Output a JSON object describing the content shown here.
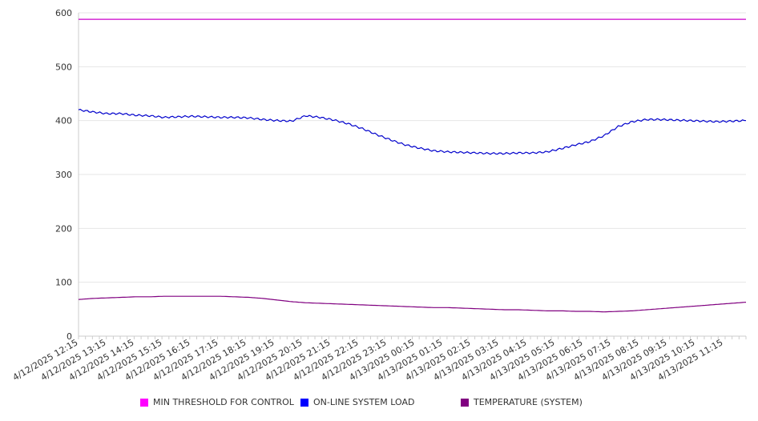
{
  "chart_data": {
    "type": "line",
    "ylim": [
      0,
      600
    ],
    "yticks": [
      0,
      100,
      200,
      300,
      400,
      500,
      600
    ],
    "grid": true,
    "legend_position": "bottom",
    "x_tick_labels": [
      "4/12/2025 12:15",
      "4/12/2025 13:15",
      "4/12/2025 14:15",
      "4/12/2025 15:15",
      "4/12/2025 16:15",
      "4/12/2025 17:15",
      "4/12/2025 18:15",
      "4/12/2025 19:15",
      "4/12/2025 20:15",
      "4/12/2025 21:15",
      "4/12/2025 22:15",
      "4/12/2025 23:15",
      "4/13/2025 00:15",
      "4/13/2025 01:15",
      "4/13/2025 02:15",
      "4/13/2025 03:15",
      "4/13/2025 04:15",
      "4/13/2025 05:15",
      "4/13/2025 06:15",
      "4/13/2025 07:15",
      "4/13/2025 08:15",
      "4/13/2025 09:15",
      "4/13/2025 10:15",
      "4/13/2025 11:15"
    ],
    "x": [
      "4/12/2025 12:15",
      "4/12/2025 12:45",
      "4/12/2025 13:15",
      "4/12/2025 13:45",
      "4/12/2025 14:15",
      "4/12/2025 14:45",
      "4/12/2025 15:15",
      "4/12/2025 15:45",
      "4/12/2025 16:15",
      "4/12/2025 16:45",
      "4/12/2025 17:15",
      "4/12/2025 17:45",
      "4/12/2025 18:15",
      "4/12/2025 18:45",
      "4/12/2025 19:15",
      "4/12/2025 19:45",
      "4/12/2025 20:15",
      "4/12/2025 20:45",
      "4/12/2025 21:15",
      "4/12/2025 21:45",
      "4/12/2025 22:15",
      "4/12/2025 22:45",
      "4/12/2025 23:15",
      "4/12/2025 23:45",
      "4/13/2025 00:15",
      "4/13/2025 00:45",
      "4/13/2025 01:15",
      "4/13/2025 01:45",
      "4/13/2025 02:15",
      "4/13/2025 02:45",
      "4/13/2025 03:15",
      "4/13/2025 03:45",
      "4/13/2025 04:15",
      "4/13/2025 04:45",
      "4/13/2025 05:15",
      "4/13/2025 05:45",
      "4/13/2025 06:15",
      "4/13/2025 06:45",
      "4/13/2025 07:15",
      "4/13/2025 07:45",
      "4/13/2025 08:15",
      "4/13/2025 08:45",
      "4/13/2025 09:15",
      "4/13/2025 09:45",
      "4/13/2025 10:15",
      "4/13/2025 10:45",
      "4/13/2025 11:15",
      "4/13/2025 11:45"
    ],
    "series": [
      {
        "name": "MIN THRESHOLD FOR CONTROL",
        "color": "#cc00cc",
        "values": [
          588,
          588,
          588,
          588,
          588,
          588,
          588,
          588,
          588,
          588,
          588,
          588,
          588,
          588,
          588,
          588,
          588,
          588,
          588,
          588,
          588,
          588,
          588,
          588,
          588,
          588,
          588,
          588,
          588,
          588,
          588,
          588,
          588,
          588,
          588,
          588,
          588,
          588,
          588,
          588,
          588,
          588,
          588,
          588,
          588,
          588,
          588,
          588
        ]
      },
      {
        "name": "ON-LINE SYSTEM LOAD",
        "color": "#0000cc",
        "values": [
          420,
          416,
          413,
          413,
          410,
          409,
          406,
          407,
          408,
          407,
          406,
          406,
          405,
          402,
          400,
          399,
          409,
          406,
          401,
          394,
          385,
          374,
          364,
          355,
          349,
          344,
          342,
          341,
          340,
          339,
          339,
          340,
          340,
          342,
          348,
          355,
          361,
          372,
          389,
          398,
          402,
          402,
          401,
          400,
          399,
          398,
          399,
          400
        ]
      },
      {
        "name": "TEMPERATURE (SYSTEM)",
        "color": "#800080",
        "values": [
          68,
          70,
          71,
          72,
          73,
          73,
          74,
          74,
          74,
          74,
          74,
          73,
          72,
          70,
          67,
          64,
          62,
          61,
          60,
          59,
          58,
          57,
          56,
          55,
          54,
          53,
          53,
          52,
          51,
          50,
          49,
          49,
          48,
          47,
          47,
          46,
          46,
          45,
          46,
          47,
          49,
          51,
          53,
          55,
          57,
          59,
          61,
          63
        ]
      }
    ]
  }
}
